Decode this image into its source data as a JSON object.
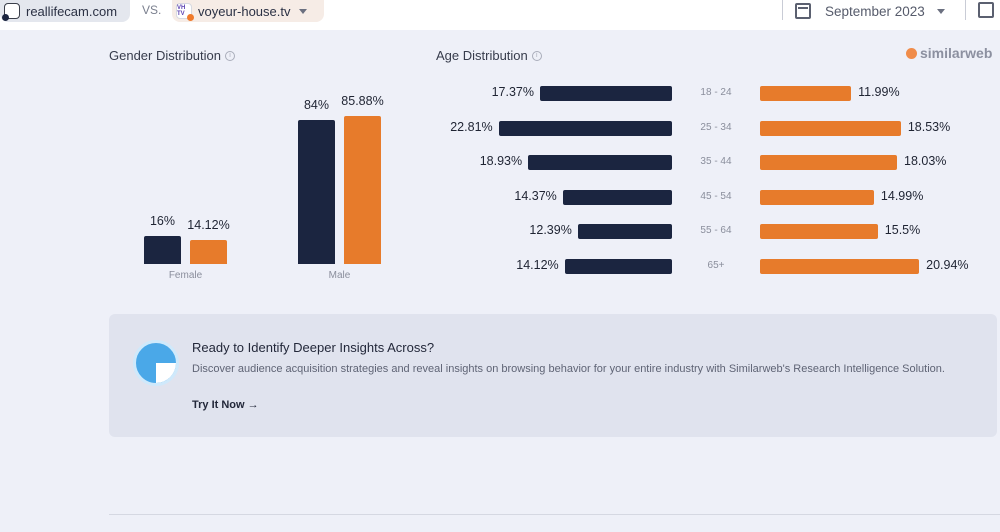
{
  "header": {
    "site_a": "reallifecam.com",
    "vs_label": "VS.",
    "site_b": "voyeur-house.tv",
    "site_b_favicon_text": "VH TV",
    "date": "September 2023",
    "site_a_color": "#1b2540",
    "site_b_color": "#f07a2b"
  },
  "gender": {
    "title": "Gender Distribution",
    "info_icon": "info-circle-icon"
  },
  "age": {
    "title": "Age Distribution",
    "info_icon": "info-circle-icon"
  },
  "brand": {
    "name": "similarweb"
  },
  "chart_data": [
    {
      "type": "bar",
      "categories": [
        "Female",
        "Male"
      ],
      "series": [
        {
          "site": "reallifecam.com",
          "color": "#1b2540",
          "values": [
            16,
            84
          ],
          "labels": [
            "16%",
            "84%"
          ]
        },
        {
          "site": "voyeur-house.tv",
          "color": "#e77b2b",
          "values": [
            14.12,
            85.88
          ],
          "labels": [
            "14.12%",
            "85.88%"
          ]
        }
      ],
      "title": "Gender Distribution"
    },
    {
      "type": "bar",
      "categories": [
        "18 - 24",
        "25 - 34",
        "35 - 44",
        "45 - 54",
        "55 - 64",
        "65+"
      ],
      "series": [
        {
          "site": "reallifecam.com",
          "color": "#1b2540",
          "values": [
            17.37,
            22.81,
            18.93,
            14.37,
            12.39,
            14.12
          ],
          "labels": [
            "17.37%",
            "22.81%",
            "18.93%",
            "14.37%",
            "12.39%",
            "14.12%"
          ]
        },
        {
          "site": "voyeur-house.tv",
          "color": "#e77b2b",
          "values": [
            11.99,
            18.53,
            18.03,
            14.99,
            15.5,
            20.94
          ],
          "labels": [
            "11.99%",
            "18.53%",
            "18.03%",
            "14.99%",
            "15.5%",
            "20.94%"
          ]
        }
      ],
      "title": "Age Distribution"
    }
  ],
  "cta": {
    "title": "Ready to Identify Deeper Insights Across?",
    "description": "Discover audience acquisition strategies and reveal insights on browsing behavior for your entire industry with Similarweb's Research Intelligence Solution.",
    "link": "Try It Now →"
  }
}
